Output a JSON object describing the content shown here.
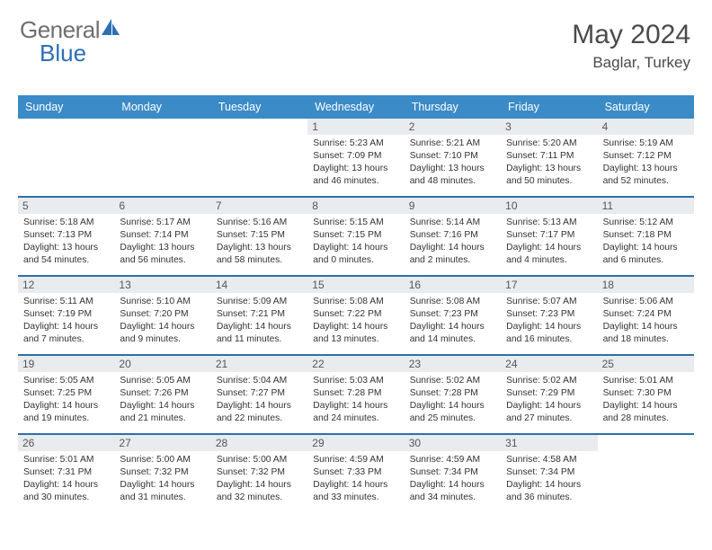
{
  "brand": {
    "part1": "General",
    "part2": "Blue"
  },
  "title": "May 2024",
  "location": "Baglar, Turkey",
  "colors": {
    "header_bg": "#3b8bc7",
    "header_text": "#ffffff",
    "divider": "#2f6fa8",
    "daynum_bg": "#e9ecef",
    "body_text": "#333333",
    "brand_gray": "#6f6f6f",
    "brand_blue": "#2d6fb5"
  },
  "weekdays": [
    "Sunday",
    "Monday",
    "Tuesday",
    "Wednesday",
    "Thursday",
    "Friday",
    "Saturday"
  ],
  "weeks": [
    [
      null,
      null,
      null,
      {
        "n": "1",
        "sr": "Sunrise: 5:23 AM",
        "ss": "Sunset: 7:09 PM",
        "d1": "Daylight: 13 hours",
        "d2": "and 46 minutes."
      },
      {
        "n": "2",
        "sr": "Sunrise: 5:21 AM",
        "ss": "Sunset: 7:10 PM",
        "d1": "Daylight: 13 hours",
        "d2": "and 48 minutes."
      },
      {
        "n": "3",
        "sr": "Sunrise: 5:20 AM",
        "ss": "Sunset: 7:11 PM",
        "d1": "Daylight: 13 hours",
        "d2": "and 50 minutes."
      },
      {
        "n": "4",
        "sr": "Sunrise: 5:19 AM",
        "ss": "Sunset: 7:12 PM",
        "d1": "Daylight: 13 hours",
        "d2": "and 52 minutes."
      }
    ],
    [
      {
        "n": "5",
        "sr": "Sunrise: 5:18 AM",
        "ss": "Sunset: 7:13 PM",
        "d1": "Daylight: 13 hours",
        "d2": "and 54 minutes."
      },
      {
        "n": "6",
        "sr": "Sunrise: 5:17 AM",
        "ss": "Sunset: 7:14 PM",
        "d1": "Daylight: 13 hours",
        "d2": "and 56 minutes."
      },
      {
        "n": "7",
        "sr": "Sunrise: 5:16 AM",
        "ss": "Sunset: 7:15 PM",
        "d1": "Daylight: 13 hours",
        "d2": "and 58 minutes."
      },
      {
        "n": "8",
        "sr": "Sunrise: 5:15 AM",
        "ss": "Sunset: 7:15 PM",
        "d1": "Daylight: 14 hours",
        "d2": "and 0 minutes."
      },
      {
        "n": "9",
        "sr": "Sunrise: 5:14 AM",
        "ss": "Sunset: 7:16 PM",
        "d1": "Daylight: 14 hours",
        "d2": "and 2 minutes."
      },
      {
        "n": "10",
        "sr": "Sunrise: 5:13 AM",
        "ss": "Sunset: 7:17 PM",
        "d1": "Daylight: 14 hours",
        "d2": "and 4 minutes."
      },
      {
        "n": "11",
        "sr": "Sunrise: 5:12 AM",
        "ss": "Sunset: 7:18 PM",
        "d1": "Daylight: 14 hours",
        "d2": "and 6 minutes."
      }
    ],
    [
      {
        "n": "12",
        "sr": "Sunrise: 5:11 AM",
        "ss": "Sunset: 7:19 PM",
        "d1": "Daylight: 14 hours",
        "d2": "and 7 minutes."
      },
      {
        "n": "13",
        "sr": "Sunrise: 5:10 AM",
        "ss": "Sunset: 7:20 PM",
        "d1": "Daylight: 14 hours",
        "d2": "and 9 minutes."
      },
      {
        "n": "14",
        "sr": "Sunrise: 5:09 AM",
        "ss": "Sunset: 7:21 PM",
        "d1": "Daylight: 14 hours",
        "d2": "and 11 minutes."
      },
      {
        "n": "15",
        "sr": "Sunrise: 5:08 AM",
        "ss": "Sunset: 7:22 PM",
        "d1": "Daylight: 14 hours",
        "d2": "and 13 minutes."
      },
      {
        "n": "16",
        "sr": "Sunrise: 5:08 AM",
        "ss": "Sunset: 7:23 PM",
        "d1": "Daylight: 14 hours",
        "d2": "and 14 minutes."
      },
      {
        "n": "17",
        "sr": "Sunrise: 5:07 AM",
        "ss": "Sunset: 7:23 PM",
        "d1": "Daylight: 14 hours",
        "d2": "and 16 minutes."
      },
      {
        "n": "18",
        "sr": "Sunrise: 5:06 AM",
        "ss": "Sunset: 7:24 PM",
        "d1": "Daylight: 14 hours",
        "d2": "and 18 minutes."
      }
    ],
    [
      {
        "n": "19",
        "sr": "Sunrise: 5:05 AM",
        "ss": "Sunset: 7:25 PM",
        "d1": "Daylight: 14 hours",
        "d2": "and 19 minutes."
      },
      {
        "n": "20",
        "sr": "Sunrise: 5:05 AM",
        "ss": "Sunset: 7:26 PM",
        "d1": "Daylight: 14 hours",
        "d2": "and 21 minutes."
      },
      {
        "n": "21",
        "sr": "Sunrise: 5:04 AM",
        "ss": "Sunset: 7:27 PM",
        "d1": "Daylight: 14 hours",
        "d2": "and 22 minutes."
      },
      {
        "n": "22",
        "sr": "Sunrise: 5:03 AM",
        "ss": "Sunset: 7:28 PM",
        "d1": "Daylight: 14 hours",
        "d2": "and 24 minutes."
      },
      {
        "n": "23",
        "sr": "Sunrise: 5:02 AM",
        "ss": "Sunset: 7:28 PM",
        "d1": "Daylight: 14 hours",
        "d2": "and 25 minutes."
      },
      {
        "n": "24",
        "sr": "Sunrise: 5:02 AM",
        "ss": "Sunset: 7:29 PM",
        "d1": "Daylight: 14 hours",
        "d2": "and 27 minutes."
      },
      {
        "n": "25",
        "sr": "Sunrise: 5:01 AM",
        "ss": "Sunset: 7:30 PM",
        "d1": "Daylight: 14 hours",
        "d2": "and 28 minutes."
      }
    ],
    [
      {
        "n": "26",
        "sr": "Sunrise: 5:01 AM",
        "ss": "Sunset: 7:31 PM",
        "d1": "Daylight: 14 hours",
        "d2": "and 30 minutes."
      },
      {
        "n": "27",
        "sr": "Sunrise: 5:00 AM",
        "ss": "Sunset: 7:32 PM",
        "d1": "Daylight: 14 hours",
        "d2": "and 31 minutes."
      },
      {
        "n": "28",
        "sr": "Sunrise: 5:00 AM",
        "ss": "Sunset: 7:32 PM",
        "d1": "Daylight: 14 hours",
        "d2": "and 32 minutes."
      },
      {
        "n": "29",
        "sr": "Sunrise: 4:59 AM",
        "ss": "Sunset: 7:33 PM",
        "d1": "Daylight: 14 hours",
        "d2": "and 33 minutes."
      },
      {
        "n": "30",
        "sr": "Sunrise: 4:59 AM",
        "ss": "Sunset: 7:34 PM",
        "d1": "Daylight: 14 hours",
        "d2": "and 34 minutes."
      },
      {
        "n": "31",
        "sr": "Sunrise: 4:58 AM",
        "ss": "Sunset: 7:34 PM",
        "d1": "Daylight: 14 hours",
        "d2": "and 36 minutes."
      },
      null
    ]
  ]
}
